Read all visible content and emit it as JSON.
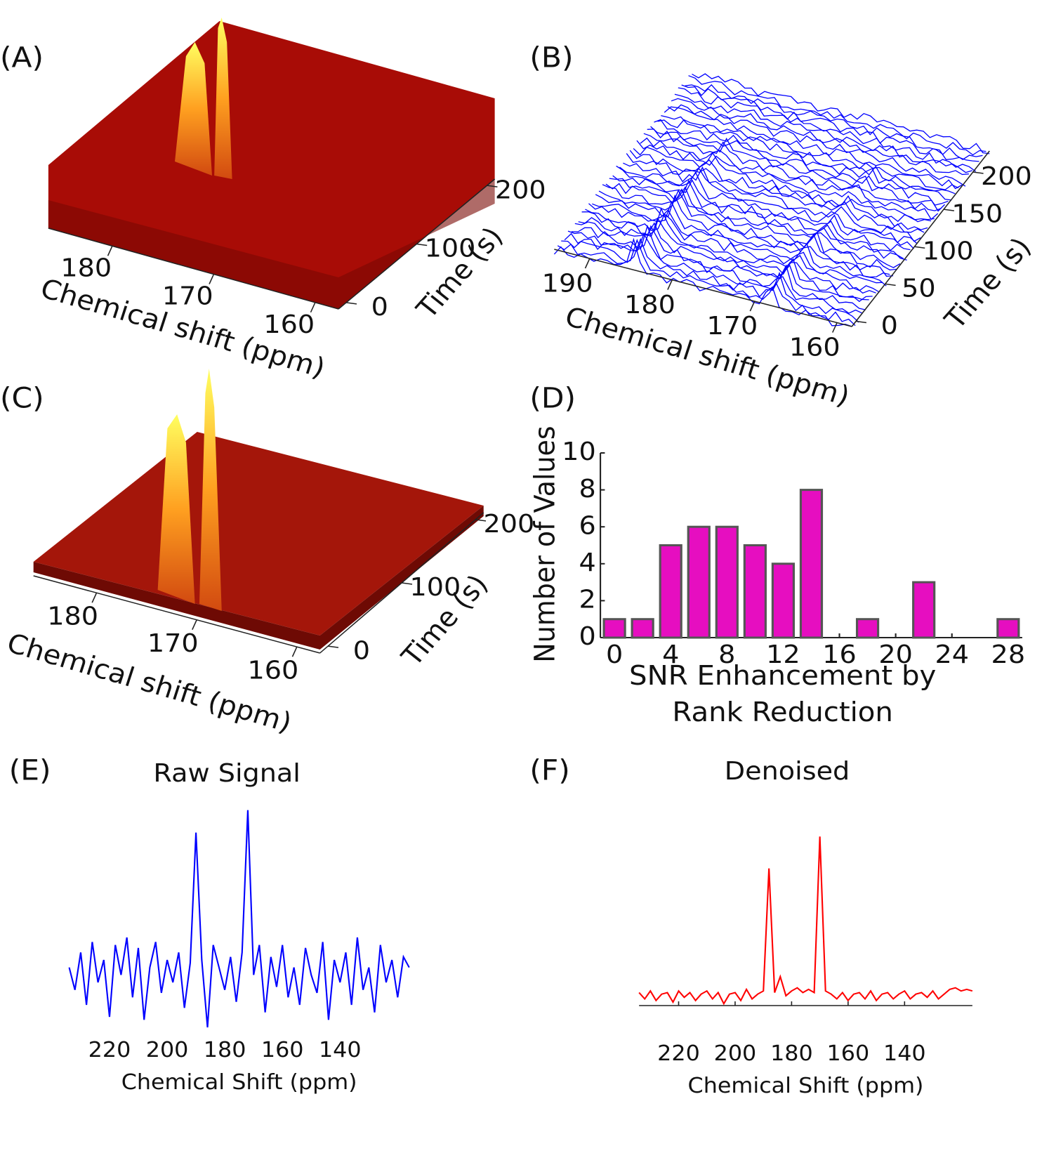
{
  "chart_data": [
    {
      "type": "surface",
      "panel_label": "(A)",
      "xlabel": "Chemical shift (ppm)",
      "ylabel": "Time (s)",
      "xlim": [
        186.3,
        157.7
      ],
      "xticks": [
        180,
        170,
        160
      ],
      "ylim": [
        -11,
        211
      ],
      "yticks": [
        0,
        100,
        200
      ]
    },
    {
      "type": "waterfall",
      "panel_label": "(B)",
      "xlabel": "Chemical shift (ppm)",
      "ylabel": "Time (s)",
      "color": "#0000ff",
      "xlim": [
        194.3,
        158.2
      ],
      "xticks": [
        190,
        180,
        170,
        160
      ],
      "ylim": [
        -7.06,
        228.2
      ],
      "yticks": [
        0,
        50,
        100,
        150,
        200
      ]
    },
    {
      "type": "surface",
      "panel_label": "(C)",
      "xlabel": "Chemical shift (ppm)",
      "ylabel": "Time (s)",
      "xlim": [
        186.3,
        157.7
      ],
      "xticks": [
        180,
        170,
        160
      ],
      "ylim": [
        -11,
        211
      ],
      "yticks": [
        0,
        100,
        200
      ]
    },
    {
      "type": "bar",
      "panel_label": "(D)",
      "ylabel": "Number of Values",
      "xlabel": [
        "SNR Enhancement by",
        "Rank Reduction"
      ],
      "color": "#e60ec0",
      "x": [
        0,
        2,
        4,
        6,
        8,
        10,
        12,
        14,
        16,
        18,
        20,
        22,
        24,
        26,
        28
      ],
      "values": [
        1,
        1,
        5,
        6,
        6,
        5,
        4,
        8,
        0,
        1,
        0,
        3,
        0,
        0,
        1
      ],
      "xlim": [
        -1,
        29
      ],
      "xticks": [
        0,
        4,
        8,
        12,
        16,
        20,
        24,
        28
      ],
      "ylim": [
        0,
        10
      ],
      "yticks": [
        0,
        2,
        4,
        6,
        8,
        10
      ]
    },
    {
      "type": "line",
      "panel_label": "(E)",
      "title": "Raw Signal",
      "xlabel": "Chemical Shift (ppm)",
      "color": "#0000ff",
      "x": [
        234,
        232,
        230,
        228,
        226,
        224,
        222,
        220,
        218,
        216,
        214,
        212,
        210,
        208,
        206,
        204,
        202,
        200,
        198,
        196,
        194,
        192,
        190,
        188,
        186,
        184,
        182,
        180,
        178,
        176,
        174,
        172,
        170,
        168,
        166,
        164,
        162,
        160,
        158,
        156,
        154,
        152,
        150,
        148,
        146,
        144,
        142,
        140,
        138,
        136,
        134,
        132,
        130,
        128,
        126,
        124,
        122,
        120,
        118,
        116
      ],
      "values": [
        0.05,
        -0.1,
        0.15,
        -0.2,
        0.22,
        -0.05,
        0.1,
        -0.28,
        0.2,
        0.0,
        0.25,
        -0.15,
        0.18,
        -0.3,
        0.05,
        0.22,
        -0.12,
        0.1,
        -0.05,
        0.15,
        -0.22,
        0.08,
        0.95,
        0.1,
        -0.35,
        0.2,
        0.05,
        -0.1,
        0.12,
        -0.18,
        0.15,
        1.1,
        0.0,
        0.2,
        -0.25,
        0.12,
        -0.08,
        0.2,
        -0.15,
        0.05,
        -0.2,
        0.18,
        0.0,
        -0.12,
        0.22,
        -0.3,
        0.1,
        -0.05,
        0.15,
        -0.2,
        0.25,
        -0.1,
        0.05,
        -0.25,
        0.2,
        -0.05,
        0.1,
        -0.15,
        0.12,
        0.05
      ],
      "xlim": [
        234,
        116
      ],
      "xticks": [
        220,
        200,
        180,
        160,
        140
      ],
      "ylim": [
        -0.35,
        1.15
      ],
      "axis_line": false
    },
    {
      "type": "line",
      "panel_label": "(F)",
      "title": "Denoised",
      "xlabel": "Chemical Shift (ppm)",
      "color": "#ff0000",
      "x": [
        234,
        232,
        230,
        228,
        226,
        224,
        222,
        220,
        218,
        216,
        214,
        212,
        210,
        208,
        206,
        204,
        202,
        200,
        198,
        196,
        194,
        192,
        190,
        188,
        186,
        184,
        182,
        180,
        178,
        176,
        174,
        172,
        170,
        168,
        166,
        164,
        162,
        160,
        158,
        156,
        154,
        152,
        150,
        148,
        146,
        144,
        142,
        140,
        138,
        136,
        134,
        132,
        130,
        128,
        126,
        124,
        122,
        120,
        118,
        116
      ],
      "values": [
        0.02,
        -0.02,
        0.03,
        -0.03,
        0.01,
        0.02,
        -0.04,
        0.03,
        -0.01,
        0.02,
        -0.03,
        0.01,
        0.03,
        -0.02,
        0.02,
        -0.05,
        0.01,
        0.02,
        -0.03,
        0.04,
        -0.02,
        0.01,
        0.03,
        0.8,
        0.02,
        0.12,
        0.0,
        0.03,
        0.05,
        0.02,
        0.04,
        0.02,
        1.0,
        0.03,
        0.01,
        -0.02,
        0.02,
        -0.03,
        0.01,
        0.02,
        -0.02,
        0.03,
        -0.03,
        0.01,
        0.02,
        -0.02,
        0.01,
        0.03,
        -0.02,
        0.01,
        0.02,
        -0.01,
        0.03,
        -0.02,
        0.01,
        0.04,
        0.05,
        0.03,
        0.04,
        0.03
      ],
      "xlim": [
        234,
        116
      ],
      "xticks": [
        220,
        200,
        180,
        160,
        140
      ],
      "ylim": [
        -0.15,
        1.05
      ],
      "axis_line": true
    }
  ]
}
